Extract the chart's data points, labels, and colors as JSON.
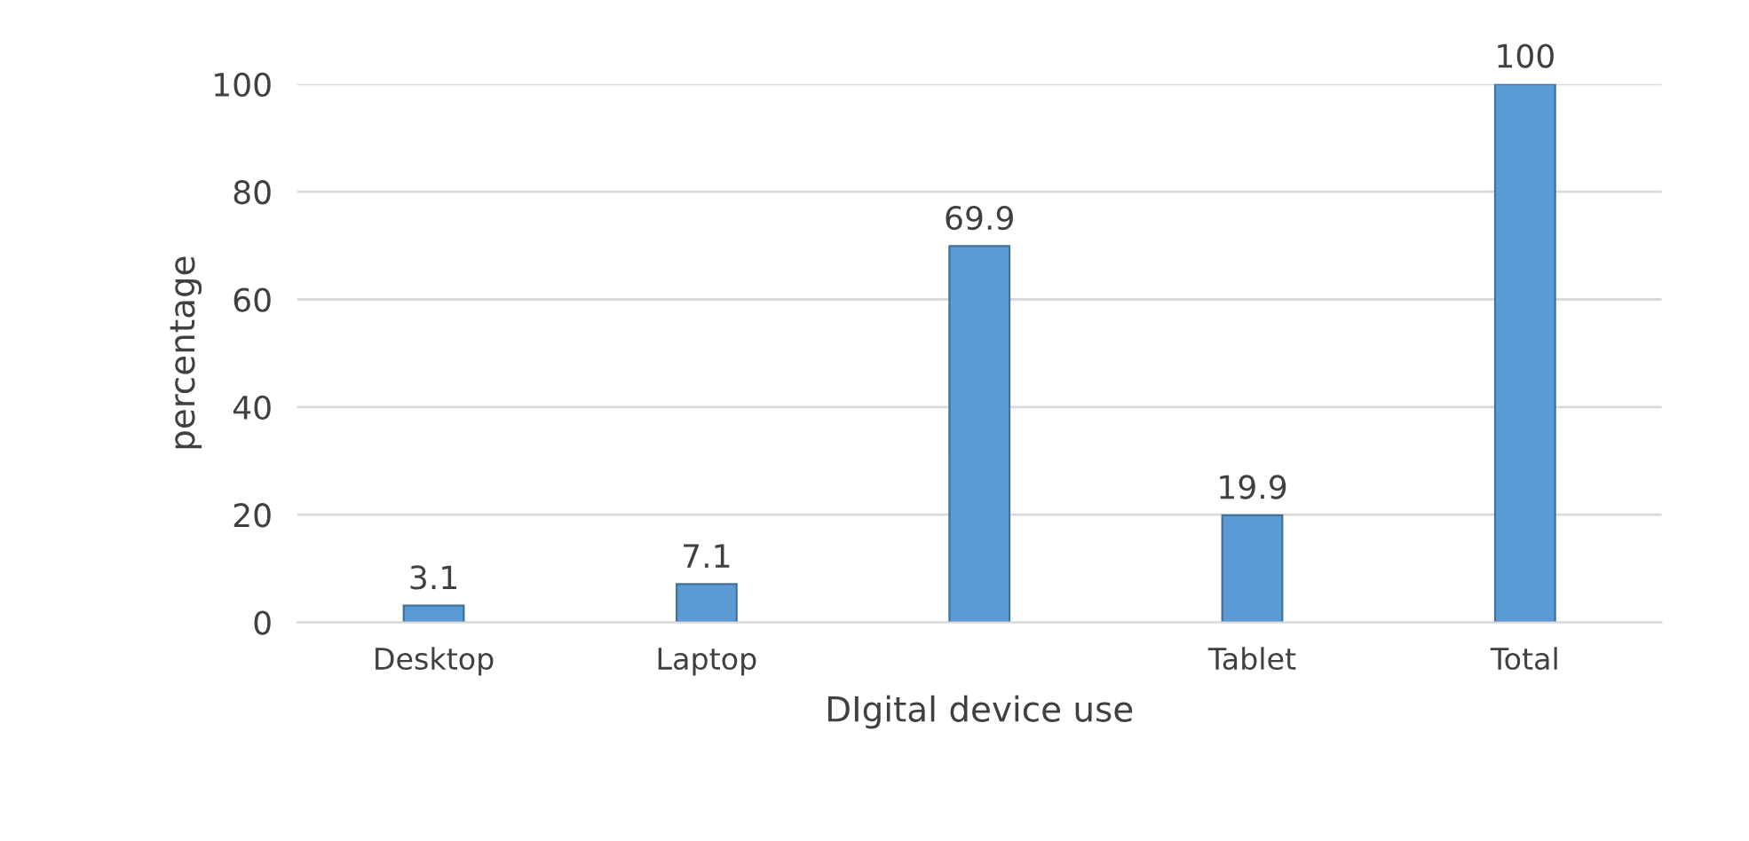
{
  "chart_data": {
    "type": "bar",
    "xlabel": "DIgital device use",
    "ylabel": "percentage",
    "categories": [
      "Desktop",
      "Laptop",
      null,
      "Tablet",
      "Total"
    ],
    "values": [
      3.1,
      7.1,
      69.9,
      19.9,
      100
    ],
    "color": "#5b9bd5",
    "ylim": [
      0,
      100
    ],
    "yticks": [
      0,
      20,
      40,
      60,
      80,
      100
    ],
    "grid": "y",
    "data_labels": true
  }
}
